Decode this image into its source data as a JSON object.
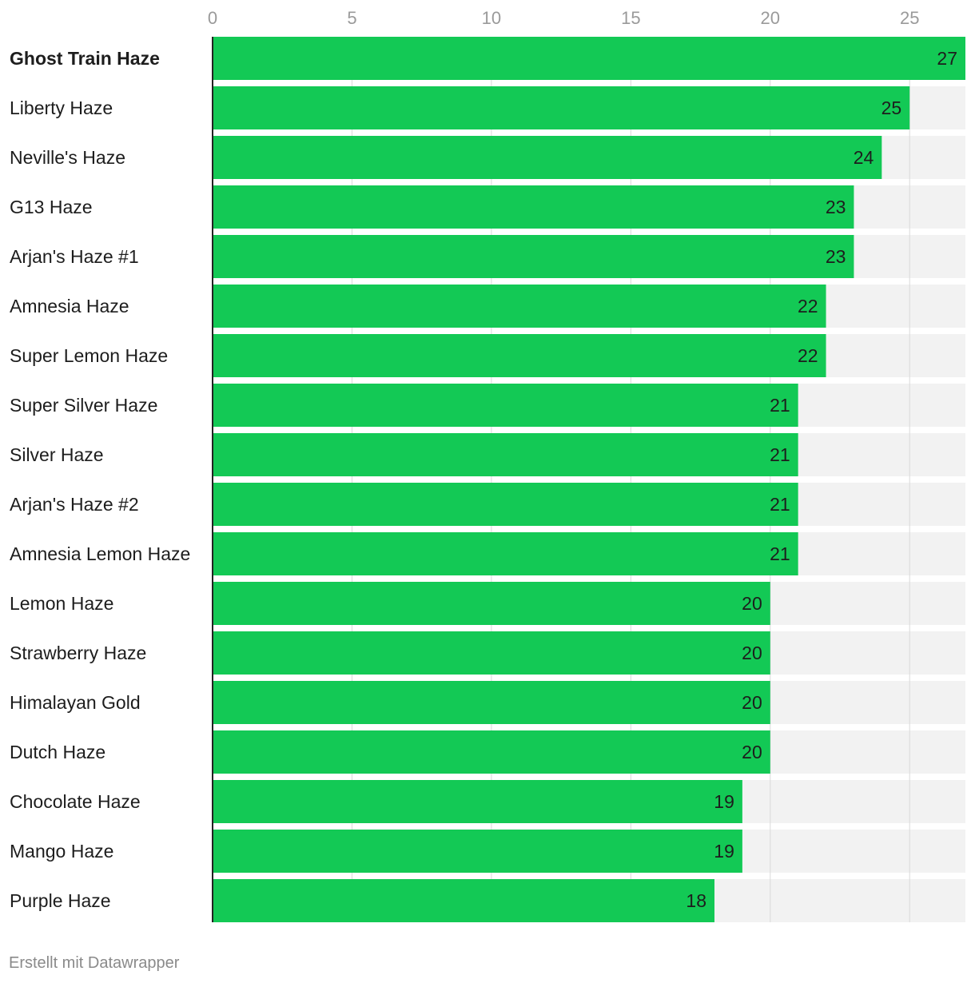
{
  "chart_data": {
    "type": "bar",
    "orientation": "horizontal",
    "categories": [
      "Ghost Train Haze",
      "Liberty Haze",
      "Neville's Haze",
      "G13 Haze",
      "Arjan's Haze #1",
      "Amnesia Haze",
      "Super Lemon Haze",
      "Super Silver Haze",
      "Silver Haze",
      "Arjan's Haze #2",
      "Amnesia Lemon Haze",
      "Lemon Haze",
      "Strawberry Haze",
      "Himalayan Gold",
      "Dutch Haze",
      "Chocolate Haze",
      "Mango Haze",
      "Purple Haze"
    ],
    "values": [
      27,
      25,
      24,
      23,
      23,
      22,
      22,
      21,
      21,
      21,
      21,
      20,
      20,
      20,
      20,
      19,
      19,
      18
    ],
    "highlighted": "Ghost Train Haze",
    "xlim": [
      0,
      27
    ],
    "xticks": [
      0,
      5,
      10,
      15,
      20,
      25
    ],
    "grid": true,
    "colors": {
      "bar": "#13c955",
      "background_bar": "#f2f2f2",
      "gridline": "#d9d9d9"
    }
  },
  "footer": {
    "credit": "Erstellt mit Datawrapper"
  }
}
